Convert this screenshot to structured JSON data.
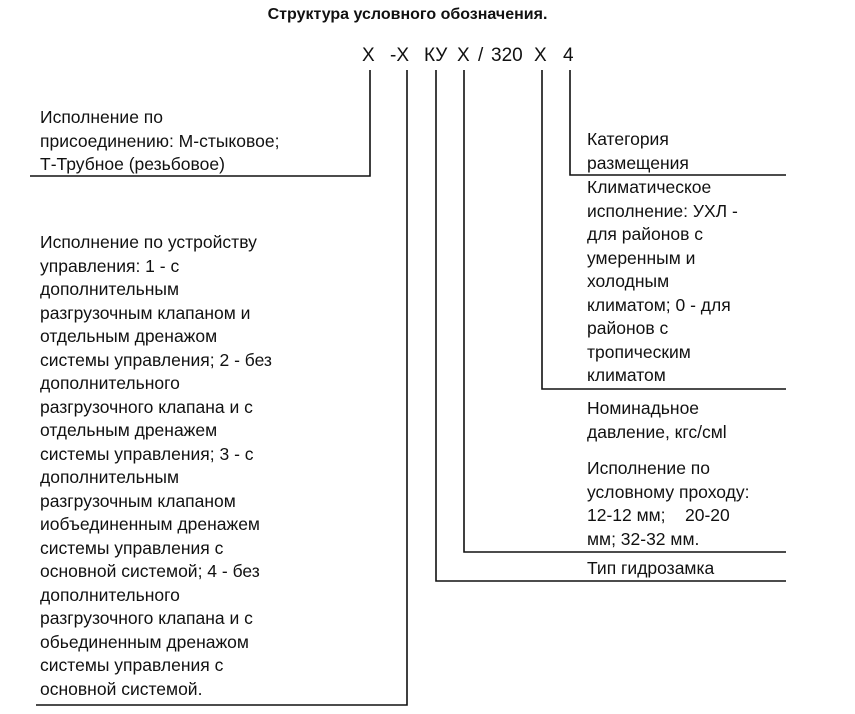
{
  "title": "Структура условного обозначения.",
  "code": [
    "Х",
    "-Х",
    "КУ",
    "Х",
    "/",
    "320",
    "Х",
    "4"
  ],
  "left_blocks": [
    {
      "lines": [
        "Исполнение по",
        "присоединению: М-стыковое;",
        "Т-Трубное (резьбовое)"
      ]
    },
    {
      "lines": [
        "Исполнение по устройству",
        "управления: 1 - с",
        "дополнительным",
        "разгрузочным клапаном и",
        "отдельным дренажом",
        "системы управления; 2 - без",
        "дополнительного",
        "разгрузочного клапана и с",
        "отдельным дренажем",
        "системы управления; 3 - с",
        "дополнительным",
        "разгрузочным клапаном",
        "иобъединенным дренажем",
        "системы управления с",
        "основной системой; 4 - без",
        "дополнительного",
        "разгрузочного клапана и с",
        "обьединенным дренажом",
        "системы управления с",
        "основной системой."
      ]
    }
  ],
  "right_blocks": [
    {
      "lines": [
        "Категория",
        "размещения"
      ]
    },
    {
      "lines": [
        "Климатическое",
        "исполнение: УХЛ -",
        "для районов с",
        "умеренным и",
        "холодным",
        "климатом; 0 - для",
        "районов с",
        "тропическим",
        "климатом"
      ]
    },
    {
      "lines": [
        "Номинадьное",
        "давление, кгс/смl"
      ]
    },
    {
      "lines": [
        "Исполнение по",
        "условному проходу:",
        "12-12 мм;    20-20",
        "мм; 32-32 мм."
      ]
    },
    {
      "lines": [
        "Тип гидрозамка"
      ]
    }
  ]
}
